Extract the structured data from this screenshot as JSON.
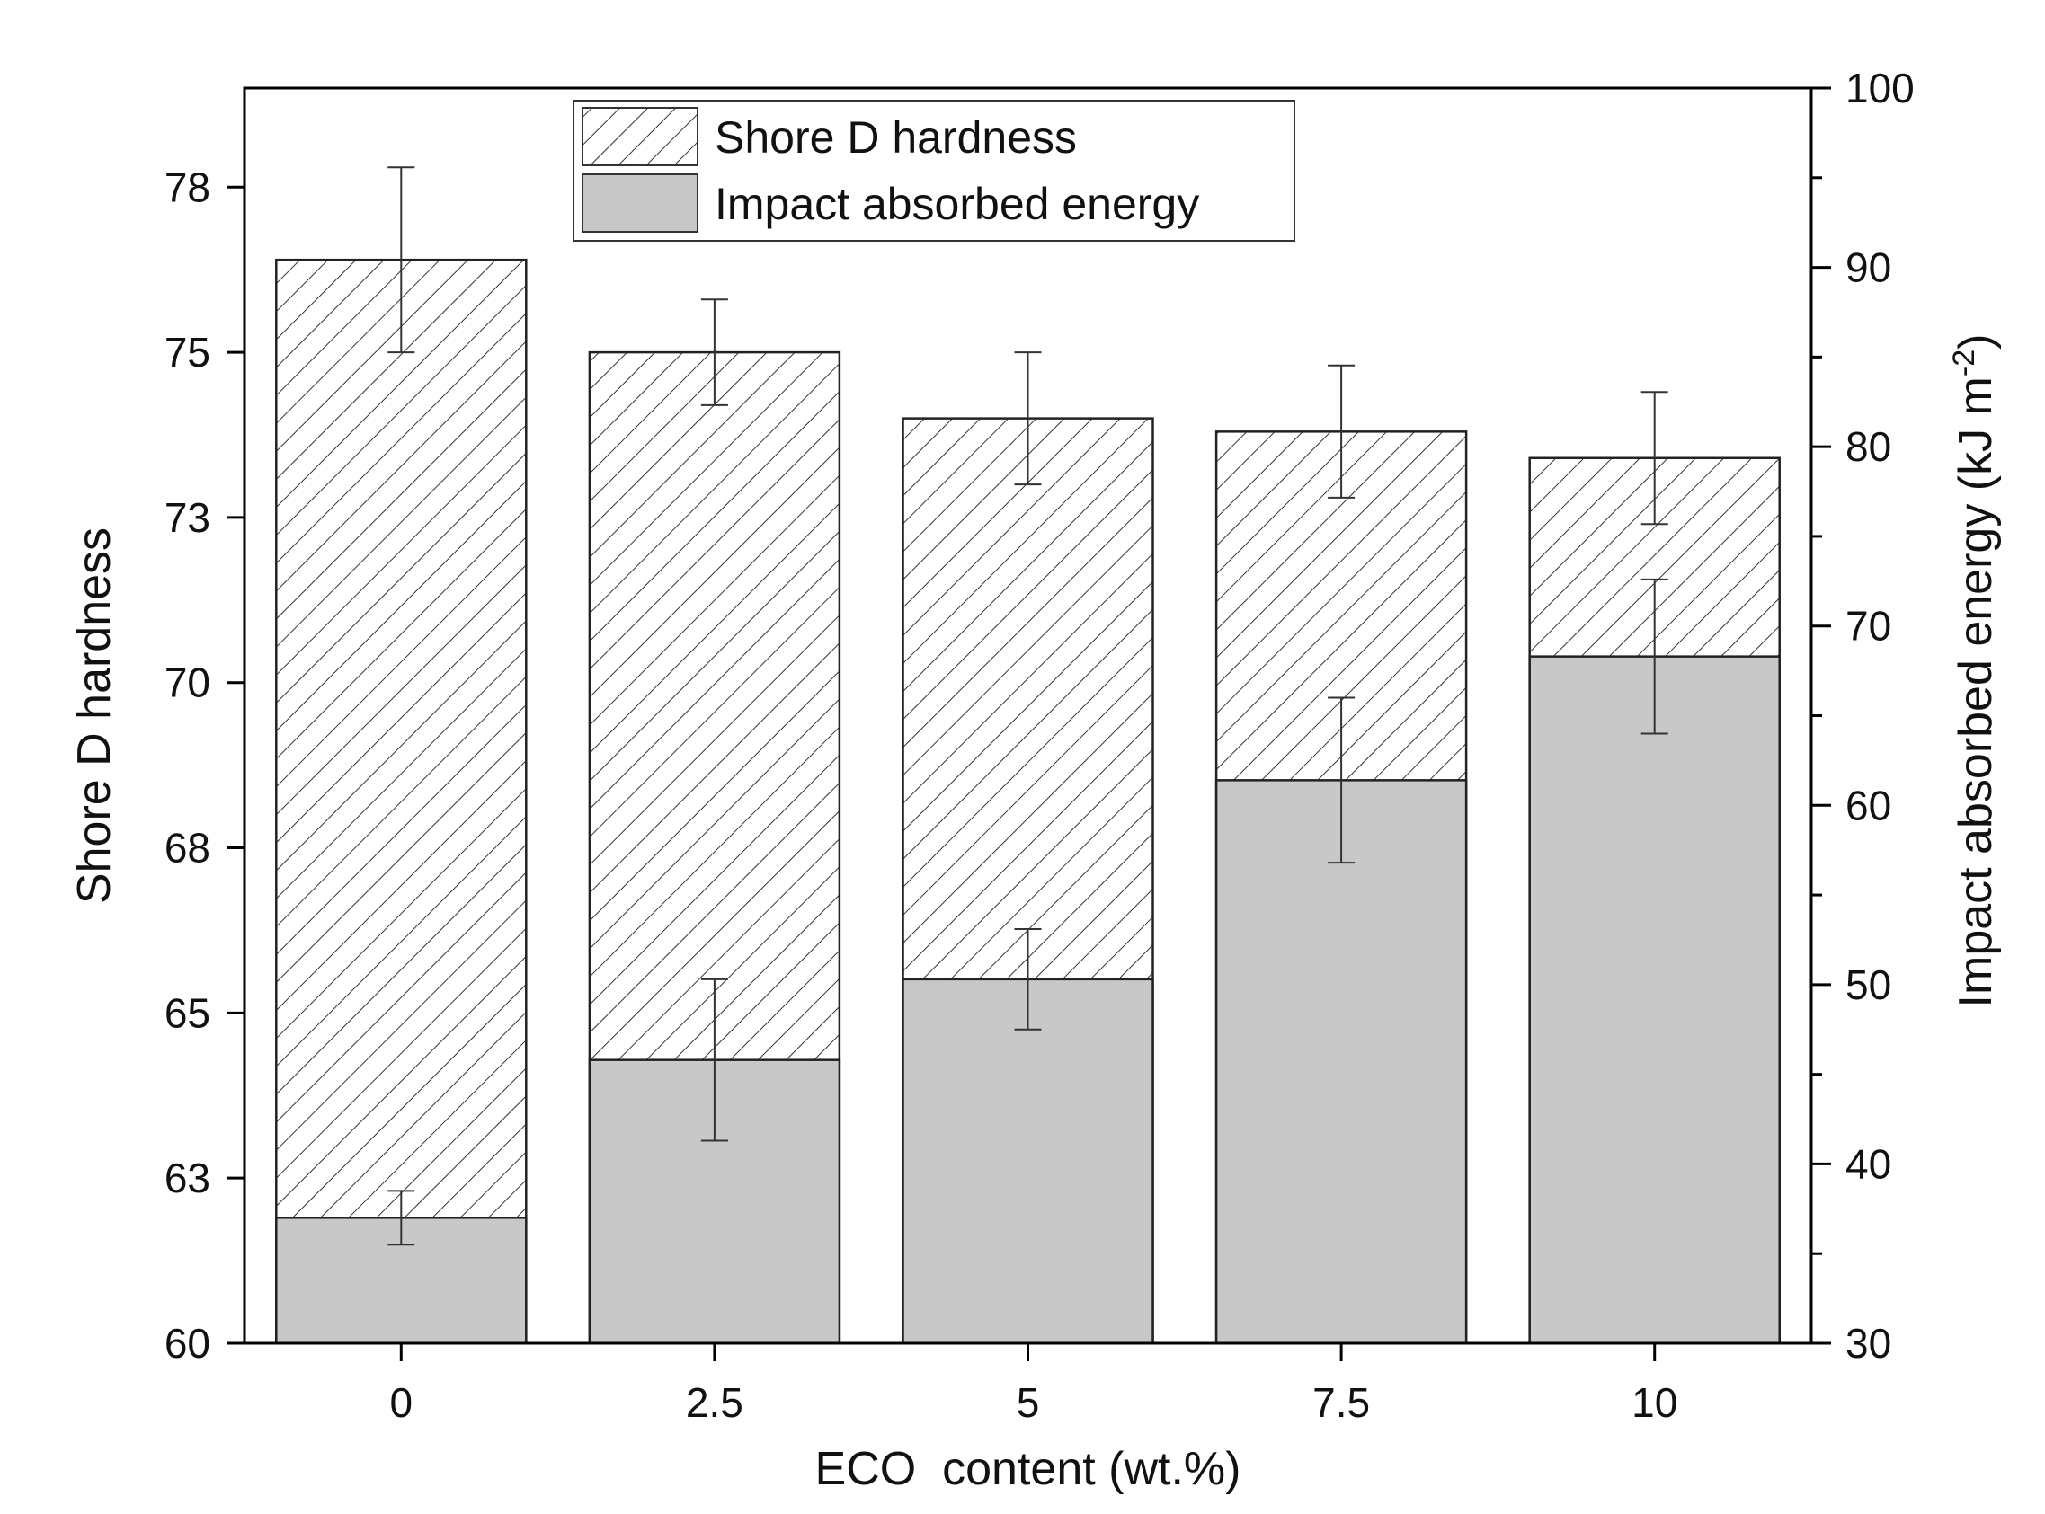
{
  "chart_data": {
    "type": "bar",
    "categories": [
      "0",
      "2.5",
      "5",
      "7.5",
      "10"
    ],
    "xlabel": "ECO  content (wt.%)",
    "series": [
      {
        "name": "Shore D hardness",
        "axis": "left",
        "values": [
          76.4,
          75.0,
          74.0,
          73.8,
          73.4
        ],
        "errors": [
          1.4,
          0.8,
          1.0,
          1.0,
          1.0
        ]
      },
      {
        "name": "Impact absorbed energy",
        "axis": "right",
        "values": [
          37.0,
          45.8,
          50.3,
          61.4,
          68.3
        ],
        "errors": [
          1.5,
          4.5,
          2.8,
          4.6,
          4.3
        ]
      }
    ],
    "left_axis": {
      "label": "Shore D hardness",
      "ylim": [
        60,
        79
      ],
      "ticks": [
        "60",
        "63",
        "65",
        "68",
        "70",
        "73",
        "75",
        "78"
      ],
      "tick_values": [
        60,
        62.5,
        65,
        67.5,
        70,
        72.5,
        75,
        77.5
      ]
    },
    "right_axis": {
      "label": "Impact absorbed energy (kJ m",
      "label_sup": "-2",
      "label_close": ")",
      "ylim": [
        30,
        100
      ],
      "ticks": [
        "30",
        "40",
        "50",
        "60",
        "70",
        "80",
        "90",
        "100"
      ],
      "tick_values": [
        30,
        40,
        50,
        60,
        70,
        80,
        90,
        100
      ]
    },
    "legend": {
      "position": "top-center",
      "entries": [
        "Shore D hardness",
        "Impact absorbed energy"
      ]
    },
    "colors": {
      "energy_fill": "#c8c8c8",
      "hatch": "#333333",
      "axis": "#000000"
    }
  }
}
